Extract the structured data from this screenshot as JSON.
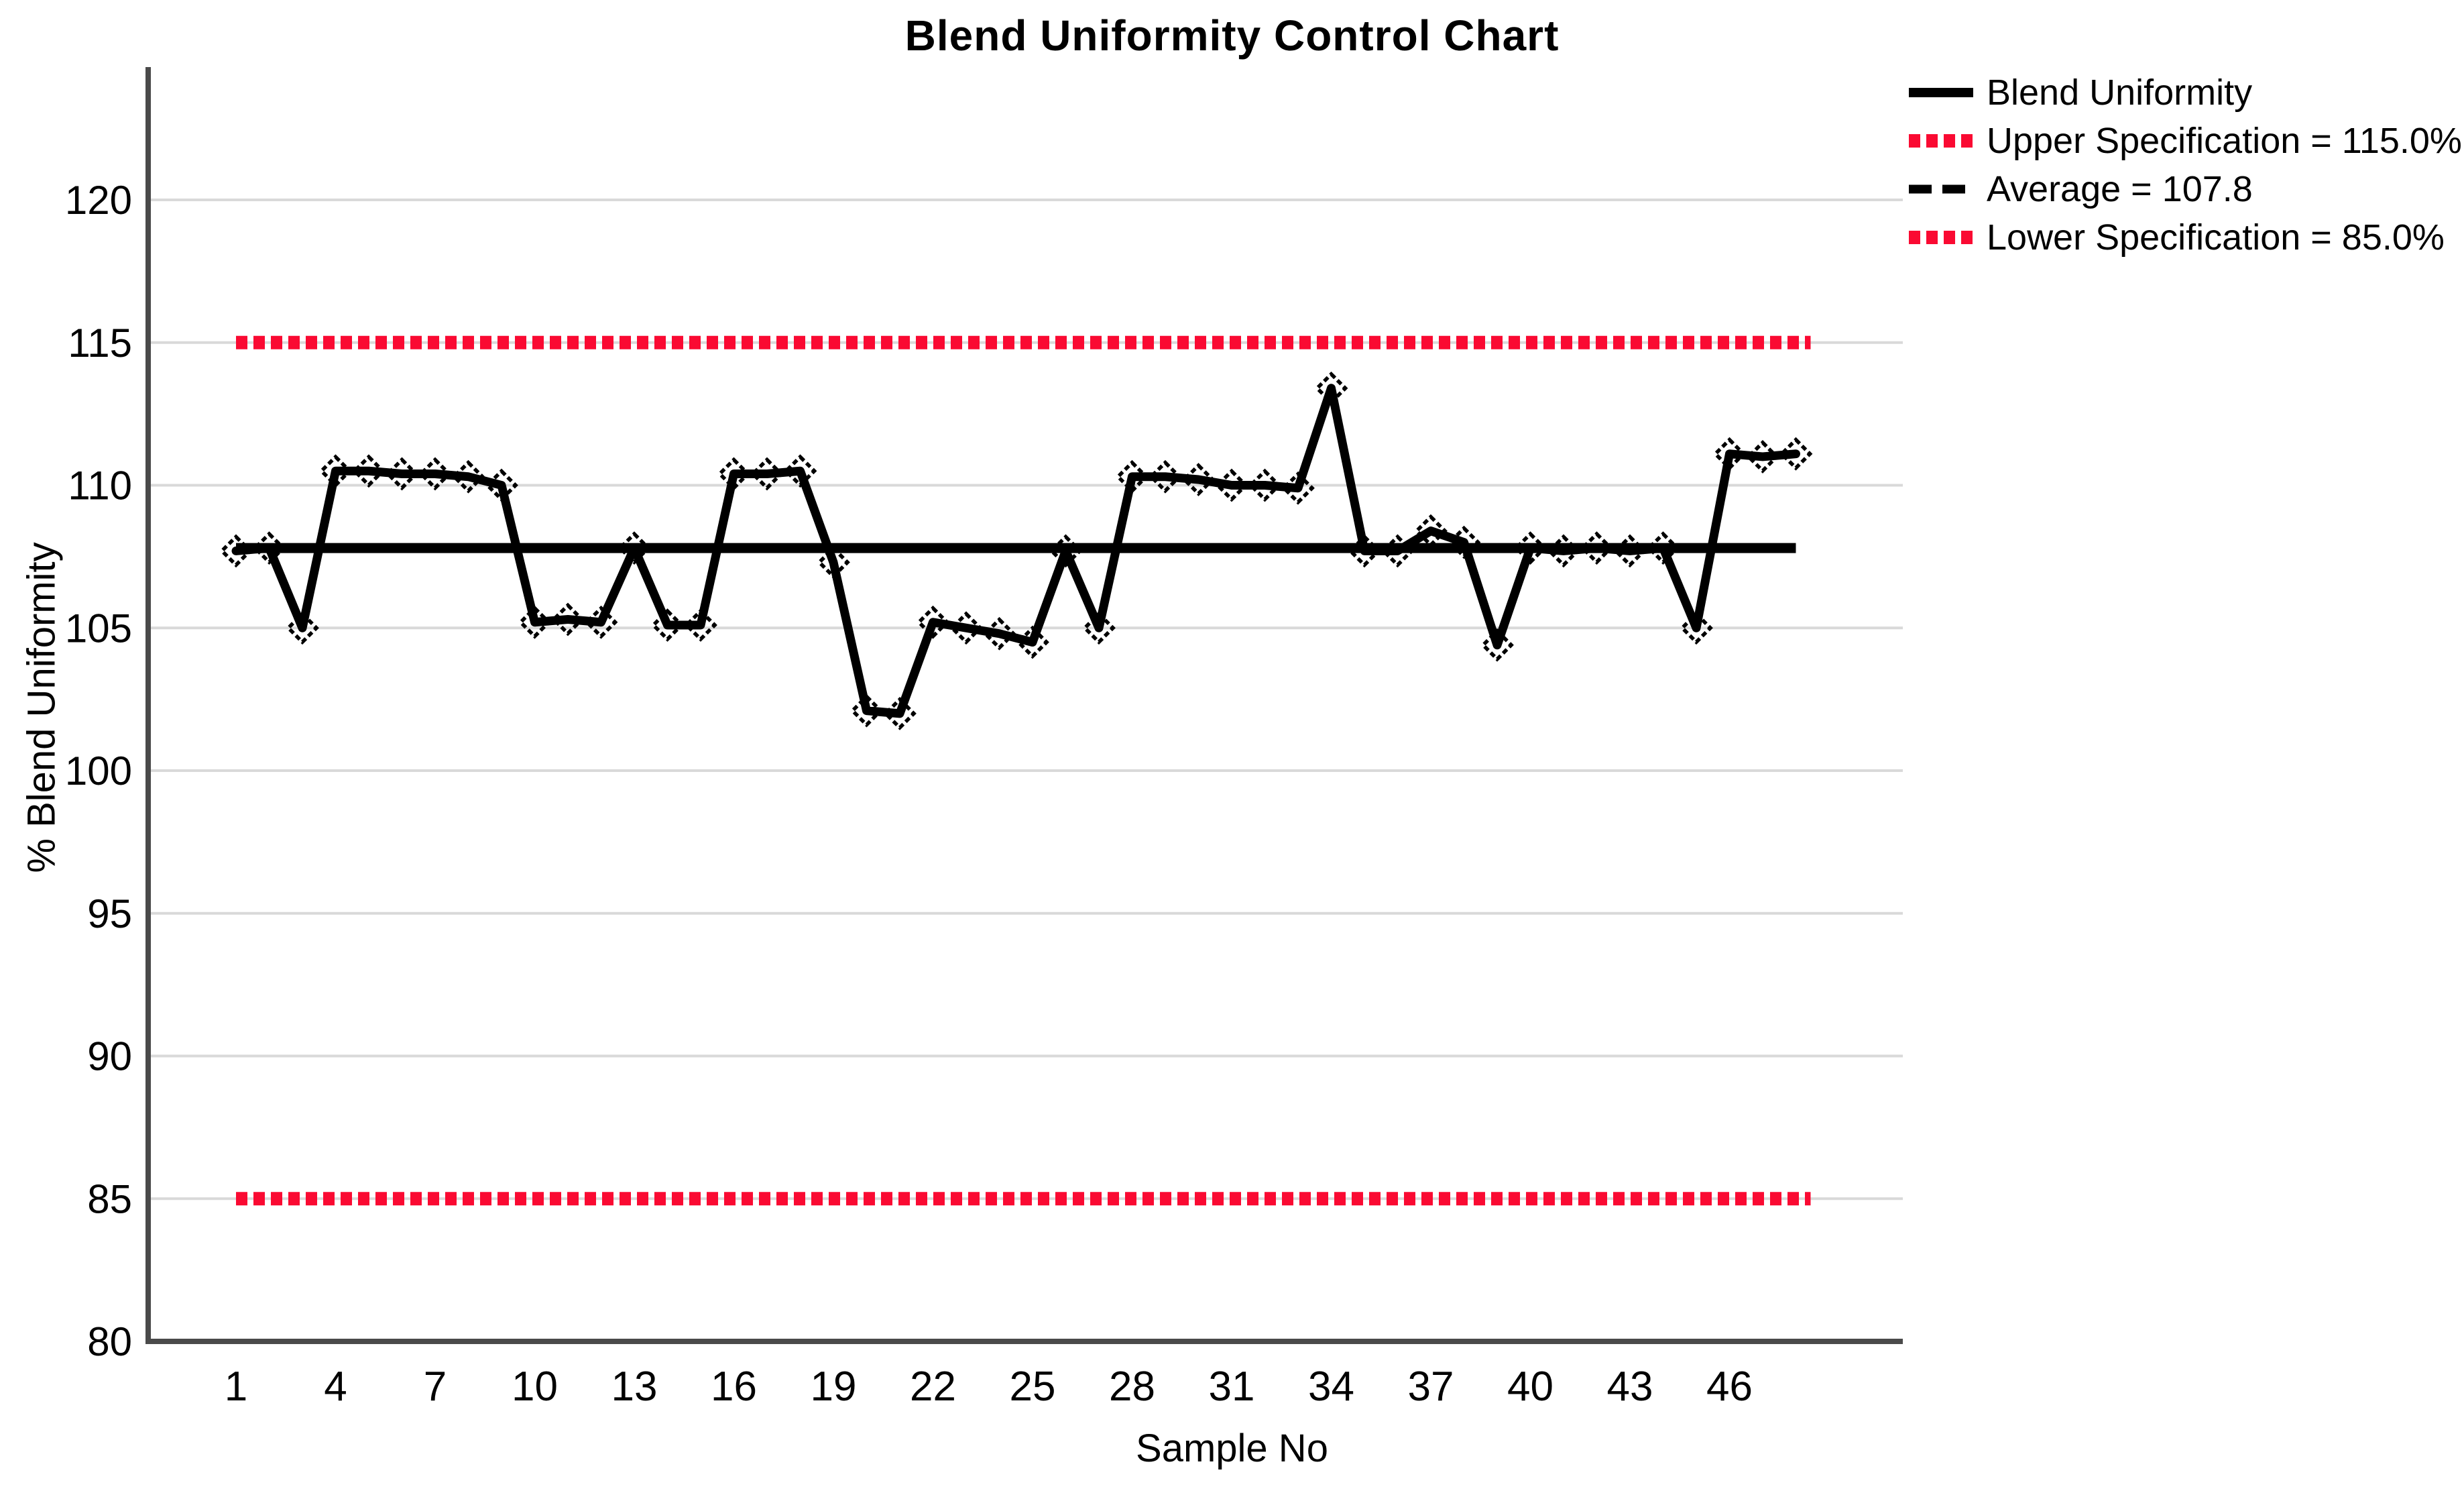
{
  "chart_data": {
    "type": "line",
    "title": "Blend Uniformity Control Chart",
    "xlabel": "Sample No",
    "ylabel": "% Blend Uniformity",
    "x_tick_labels": [
      1,
      4,
      7,
      10,
      13,
      16,
      19,
      22,
      25,
      28,
      31,
      34,
      37,
      40,
      43,
      46
    ],
    "y_ticks": [
      80,
      85,
      90,
      95,
      100,
      105,
      110,
      115,
      120
    ],
    "ylim": [
      80,
      124.5
    ],
    "xlim": [
      1,
      48
    ],
    "grid": "horizontal-only",
    "legend_position": "top-right",
    "x": [
      1,
      2,
      3,
      4,
      5,
      6,
      7,
      8,
      9,
      10,
      11,
      12,
      13,
      14,
      15,
      16,
      17,
      18,
      19,
      20,
      21,
      22,
      23,
      24,
      25,
      26,
      27,
      28,
      29,
      30,
      31,
      32,
      33,
      34,
      35,
      36,
      37,
      38,
      39,
      40,
      41,
      42,
      43,
      44,
      45,
      46,
      47,
      48
    ],
    "series": [
      {
        "name": "Blend Uniformity",
        "marker": "open-diamond",
        "values": [
          107.7,
          107.8,
          105.0,
          110.5,
          110.5,
          110.4,
          110.4,
          110.3,
          110.0,
          105.2,
          105.3,
          105.2,
          107.8,
          105.1,
          105.1,
          110.4,
          110.4,
          110.5,
          107.3,
          102.1,
          102.0,
          105.2,
          105.0,
          104.8,
          104.5,
          107.7,
          105.0,
          110.3,
          110.3,
          110.2,
          110.0,
          110.0,
          109.9,
          113.4,
          107.7,
          107.7,
          108.4,
          108.0,
          104.4,
          107.8,
          107.7,
          107.8,
          107.7,
          107.8,
          105.0,
          111.1,
          111.0,
          111.1
        ]
      }
    ],
    "reference_lines": [
      {
        "name": "upper-specification",
        "value": 115.0,
        "style": "dotted",
        "color": "#fa0a32"
      },
      {
        "name": "average",
        "value": 107.8,
        "style": "solid",
        "color": "#000000"
      },
      {
        "name": "lower-specification",
        "value": 85.0,
        "style": "dotted",
        "color": "#fa0a32"
      }
    ]
  },
  "legend": {
    "items": [
      {
        "label": "Blend Uniformity",
        "swatch": "solid-black"
      },
      {
        "label": "Upper Specification = 115.0%",
        "swatch": "dotted-red"
      },
      {
        "label": "Average = 107.8",
        "swatch": "dashed-black"
      },
      {
        "label": "Lower Specification = 85.0%",
        "swatch": "dotted-red"
      }
    ]
  },
  "colors": {
    "series": "#000000",
    "spec_red": "#fa0a32",
    "gridline": "#d9d9d9",
    "axis": "#4a4a4a",
    "text": "#000000"
  }
}
